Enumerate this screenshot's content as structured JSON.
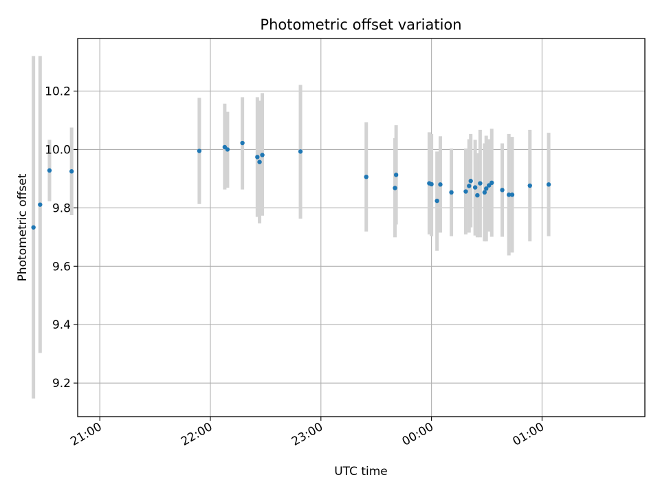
{
  "chart_data": {
    "type": "scatter",
    "title": "Photometric offset variation",
    "xlabel": "UTC time",
    "ylabel": "Photometric offset",
    "x_unit": "hours since 20:00 UTC on the plotted night",
    "xlim": [
      0.8,
      5.93
    ],
    "ylim": [
      9.085,
      10.38
    ],
    "x_ticks": [
      {
        "value": 1,
        "label": "21:00"
      },
      {
        "value": 2,
        "label": "22:00"
      },
      {
        "value": 3,
        "label": "23:00"
      },
      {
        "value": 4,
        "label": "00:00"
      },
      {
        "value": 5,
        "label": "01:00"
      }
    ],
    "y_ticks": [
      {
        "value": 9.2,
        "label": "9.2"
      },
      {
        "value": 9.4,
        "label": "9.4"
      },
      {
        "value": 9.6,
        "label": "9.6"
      },
      {
        "value": 9.8,
        "label": "9.8"
      },
      {
        "value": 10.0,
        "label": "10.0"
      },
      {
        "value": 10.2,
        "label": "10.2"
      }
    ],
    "grid": true,
    "legend": null,
    "colors": {
      "marker": "#1f77b4",
      "errorbar": "#d3d3d3",
      "grid": "#b0b0b0"
    },
    "points": [
      {
        "x": 0.4,
        "y": 9.733,
        "ylo": 9.147,
        "yhi": 10.32
      },
      {
        "x": 0.46,
        "y": 9.811,
        "ylo": 9.303,
        "yhi": 10.32
      },
      {
        "x": 0.545,
        "y": 9.928,
        "ylo": 9.823,
        "yhi": 10.033
      },
      {
        "x": 0.745,
        "y": 9.925,
        "ylo": 9.775,
        "yhi": 10.075
      },
      {
        "x": 1.9,
        "y": 9.995,
        "ylo": 9.813,
        "yhi": 10.177
      },
      {
        "x": 2.13,
        "y": 10.008,
        "ylo": 9.863,
        "yhi": 10.157
      },
      {
        "x": 2.155,
        "y": 10.0,
        "ylo": 9.869,
        "yhi": 10.129
      },
      {
        "x": 2.29,
        "y": 10.022,
        "ylo": 9.863,
        "yhi": 10.179
      },
      {
        "x": 2.425,
        "y": 9.974,
        "ylo": 9.769,
        "yhi": 10.179
      },
      {
        "x": 2.445,
        "y": 9.957,
        "ylo": 9.747,
        "yhi": 10.167
      },
      {
        "x": 2.47,
        "y": 9.981,
        "ylo": 9.773,
        "yhi": 10.193
      },
      {
        "x": 2.815,
        "y": 9.993,
        "ylo": 9.763,
        "yhi": 10.221
      },
      {
        "x": 3.41,
        "y": 9.906,
        "ylo": 9.719,
        "yhi": 10.093
      },
      {
        "x": 3.67,
        "y": 9.868,
        "ylo": 9.699,
        "yhi": 10.039
      },
      {
        "x": 3.68,
        "y": 9.913,
        "ylo": 9.743,
        "yhi": 10.083
      },
      {
        "x": 3.98,
        "y": 9.884,
        "ylo": 9.709,
        "yhi": 10.059
      },
      {
        "x": 4.0,
        "y": 9.881,
        "ylo": 9.703,
        "yhi": 10.053
      },
      {
        "x": 4.05,
        "y": 9.824,
        "ylo": 9.653,
        "yhi": 9.993
      },
      {
        "x": 4.08,
        "y": 9.88,
        "ylo": 9.715,
        "yhi": 10.045
      },
      {
        "x": 4.18,
        "y": 9.853,
        "ylo": 9.703,
        "yhi": 10.003
      },
      {
        "x": 4.31,
        "y": 9.856,
        "ylo": 9.709,
        "yhi": 10.003
      },
      {
        "x": 4.34,
        "y": 9.875,
        "ylo": 9.715,
        "yhi": 10.035
      },
      {
        "x": 4.355,
        "y": 9.892,
        "ylo": 9.733,
        "yhi": 10.053
      },
      {
        "x": 4.395,
        "y": 9.87,
        "ylo": 9.705,
        "yhi": 10.033
      },
      {
        "x": 4.415,
        "y": 9.843,
        "ylo": 9.699,
        "yhi": 9.987
      },
      {
        "x": 4.44,
        "y": 9.884,
        "ylo": 9.699,
        "yhi": 10.067
      },
      {
        "x": 4.48,
        "y": 9.853,
        "ylo": 9.685,
        "yhi": 10.021
      },
      {
        "x": 4.495,
        "y": 9.866,
        "ylo": 9.685,
        "yhi": 10.047
      },
      {
        "x": 4.52,
        "y": 9.877,
        "ylo": 9.719,
        "yhi": 10.035
      },
      {
        "x": 4.545,
        "y": 9.886,
        "ylo": 9.701,
        "yhi": 10.071
      },
      {
        "x": 4.64,
        "y": 9.861,
        "ylo": 9.701,
        "yhi": 10.021
      },
      {
        "x": 4.7,
        "y": 9.845,
        "ylo": 9.637,
        "yhi": 10.053
      },
      {
        "x": 4.73,
        "y": 9.845,
        "ylo": 9.647,
        "yhi": 10.043
      },
      {
        "x": 4.89,
        "y": 9.876,
        "ylo": 9.685,
        "yhi": 10.067
      },
      {
        "x": 5.06,
        "y": 9.88,
        "ylo": 9.703,
        "yhi": 10.057
      }
    ]
  }
}
